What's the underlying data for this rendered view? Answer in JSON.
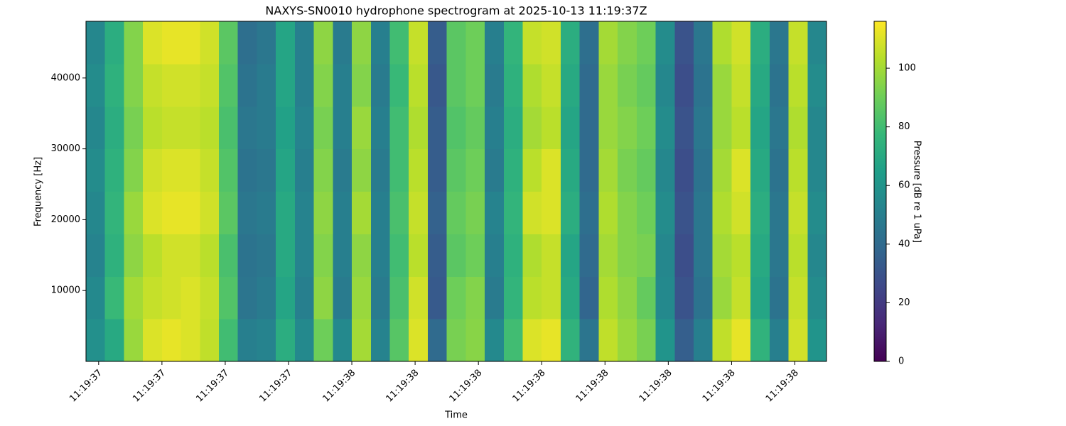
{
  "chart_data": {
    "type": "heatmap",
    "title": "NAXYS-SN0010 hydrophone spectrogram at 2025-10-13 11:19:37Z",
    "x_label": "Time",
    "y_label": "Frequency [Hz]",
    "colorbar_label": "Pressure [dB re 1 uPa]",
    "colormap": "viridis",
    "x": [
      37.58,
      37.61,
      37.64,
      37.67,
      37.7,
      37.73,
      37.76,
      37.79,
      37.82,
      37.85,
      37.88,
      37.91,
      37.94,
      37.97,
      38.0,
      38.03,
      38.06,
      38.09,
      38.12,
      38.15,
      38.18,
      38.21,
      38.24,
      38.27,
      38.3,
      38.33,
      38.36,
      38.39,
      38.42,
      38.45,
      38.48,
      38.51,
      38.54,
      38.57,
      38.6,
      38.63,
      38.66,
      38.69,
      38.72,
      38.75
    ],
    "y": [
      0,
      6000,
      12000,
      18000,
      24000,
      30000,
      36000,
      42000,
      48000
    ],
    "z": [
      [
        58,
        70,
        98,
        110,
        112,
        110,
        105,
        80,
        50,
        52,
        72,
        55,
        90,
        55,
        100,
        52,
        85,
        110,
        40,
        92,
        95,
        55,
        80,
        110,
        112,
        75,
        45,
        105,
        98,
        92,
        60,
        35,
        50,
        105,
        112,
        75,
        50,
        108,
        60
      ],
      [
        55,
        78,
        100,
        106,
        108,
        110,
        106,
        84,
        45,
        48,
        68,
        50,
        96,
        48,
        98,
        48,
        82,
        108,
        33,
        90,
        94,
        48,
        76,
        104,
        106,
        70,
        38,
        102,
        96,
        88,
        55,
        30,
        44,
        98,
        106,
        68,
        44,
        106,
        56
      ],
      [
        52,
        74,
        96,
        104,
        108,
        108,
        104,
        82,
        44,
        46,
        70,
        52,
        94,
        50,
        96,
        50,
        80,
        104,
        34,
        86,
        90,
        50,
        74,
        102,
        106,
        68,
        40,
        100,
        94,
        92,
        54,
        28,
        46,
        100,
        104,
        70,
        46,
        104,
        54
      ],
      [
        54,
        76,
        98,
        110,
        112,
        112,
        108,
        86,
        46,
        48,
        70,
        52,
        96,
        50,
        100,
        50,
        82,
        106,
        36,
        88,
        92,
        52,
        76,
        108,
        110,
        72,
        42,
        102,
        94,
        90,
        56,
        30,
        46,
        102,
        108,
        72,
        46,
        106,
        56
      ],
      [
        56,
        74,
        94,
        108,
        110,
        110,
        106,
        84,
        44,
        46,
        68,
        50,
        94,
        48,
        96,
        48,
        80,
        104,
        34,
        86,
        90,
        48,
        74,
        104,
        110,
        70,
        40,
        100,
        92,
        88,
        54,
        28,
        44,
        100,
        110,
        70,
        44,
        104,
        54
      ],
      [
        54,
        72,
        92,
        104,
        106,
        106,
        104,
        82,
        46,
        48,
        66,
        52,
        92,
        50,
        98,
        50,
        80,
        102,
        34,
        84,
        88,
        50,
        72,
        100,
        104,
        68,
        40,
        98,
        94,
        90,
        56,
        30,
        46,
        98,
        104,
        68,
        46,
        102,
        54
      ],
      [
        56,
        74,
        94,
        106,
        108,
        108,
        106,
        84,
        44,
        48,
        68,
        50,
        94,
        50,
        94,
        48,
        78,
        104,
        32,
        86,
        90,
        48,
        74,
        102,
        106,
        70,
        40,
        98,
        92,
        88,
        54,
        28,
        44,
        98,
        106,
        70,
        44,
        104,
        56
      ],
      [
        54,
        72,
        94,
        110,
        112,
        112,
        108,
        86,
        42,
        46,
        68,
        50,
        96,
        48,
        96,
        50,
        80,
        106,
        34,
        86,
        90,
        50,
        76,
        106,
        108,
        72,
        42,
        100,
        94,
        90,
        56,
        30,
        46,
        102,
        108,
        72,
        46,
        106,
        54
      ]
    ],
    "xlim": [
      37.58,
      38.75
    ],
    "ylim": [
      0,
      48000
    ],
    "clim": [
      0,
      116
    ],
    "xticks": [
      {
        "value": 37.6,
        "label": "11:19:37"
      },
      {
        "value": 37.7,
        "label": "11:19:37"
      },
      {
        "value": 37.8,
        "label": "11:19:37"
      },
      {
        "value": 37.9,
        "label": "11:19:37"
      },
      {
        "value": 38.0,
        "label": "11:19:38"
      },
      {
        "value": 38.1,
        "label": "11:19:38"
      },
      {
        "value": 38.2,
        "label": "11:19:38"
      },
      {
        "value": 38.3,
        "label": "11:19:38"
      },
      {
        "value": 38.4,
        "label": "11:19:38"
      },
      {
        "value": 38.5,
        "label": "11:19:38"
      },
      {
        "value": 38.6,
        "label": "11:19:38"
      },
      {
        "value": 38.7,
        "label": "11:19:38"
      }
    ],
    "yticks": [
      10000,
      20000,
      30000,
      40000
    ],
    "cticks": [
      0,
      20,
      40,
      60,
      80,
      100
    ]
  }
}
